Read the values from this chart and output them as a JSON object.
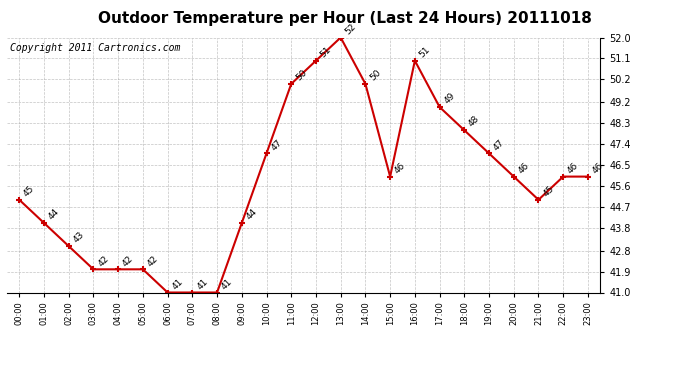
{
  "hours": [
    "00:00",
    "01:00",
    "02:00",
    "03:00",
    "04:00",
    "05:00",
    "06:00",
    "07:00",
    "08:00",
    "09:00",
    "10:00",
    "11:00",
    "12:00",
    "13:00",
    "14:00",
    "15:00",
    "16:00",
    "17:00",
    "18:00",
    "19:00",
    "20:00",
    "21:00",
    "22:00",
    "23:00"
  ],
  "temps": [
    45,
    44,
    43,
    42,
    42,
    42,
    41,
    41,
    41,
    44,
    47,
    50,
    51,
    52,
    50,
    46,
    51,
    49,
    48,
    47,
    46,
    45,
    46,
    46
  ],
  "title": "Outdoor Temperature per Hour (Last 24 Hours) 20111018",
  "copyright": "Copyright 2011 Cartronics.com",
  "line_color": "#cc0000",
  "marker_color": "#cc0000",
  "bg_color": "#ffffff",
  "grid_color": "#aaaaaa",
  "ylim_min": 41.0,
  "ylim_max": 52.0,
  "yticks": [
    41.0,
    41.9,
    42.8,
    43.8,
    44.7,
    45.6,
    46.5,
    47.4,
    48.3,
    49.2,
    50.2,
    51.1,
    52.0
  ],
  "title_fontsize": 11,
  "copyright_fontsize": 7,
  "label_fontsize": 6.5
}
